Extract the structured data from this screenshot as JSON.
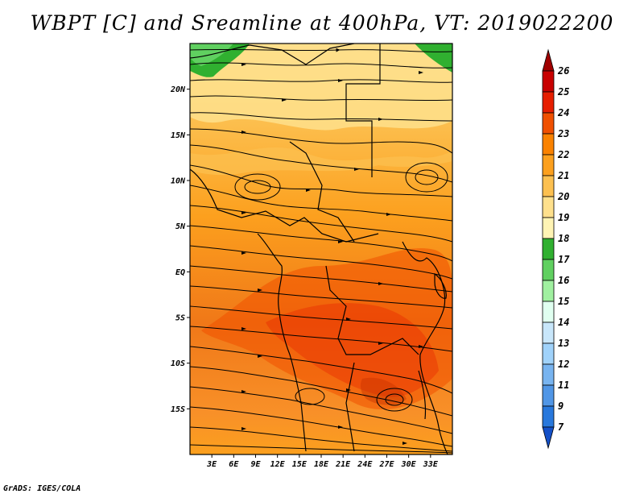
{
  "title": "WBPT [C] and Sreamline at 400hPa, VT: 2019022200",
  "footer": "GrADS: IGES/COLA",
  "map": {
    "lon_range": [
      0,
      36
    ],
    "lat_range": [
      -20,
      25
    ],
    "x_ticks": [
      "3E",
      "6E",
      "9E",
      "12E",
      "15E",
      "18E",
      "21E",
      "24E",
      "27E",
      "30E",
      "33E"
    ],
    "x_tick_values": [
      3,
      6,
      9,
      12,
      15,
      18,
      21,
      24,
      27,
      30,
      33
    ],
    "y_ticks": [
      "20N",
      "15N",
      "10N",
      "5N",
      "EQ",
      "5S",
      "10S",
      "15S"
    ],
    "y_tick_values": [
      20,
      15,
      10,
      5,
      0,
      -5,
      -10,
      -15
    ]
  },
  "colorbar": {
    "labels": [
      "26",
      "25",
      "24",
      "23",
      "22",
      "21",
      "20",
      "19",
      "18",
      "17",
      "16",
      "15",
      "14",
      "13",
      "12",
      "11",
      "9",
      "7"
    ],
    "colors": [
      "#a00000",
      "#c80000",
      "#e61e00",
      "#f05000",
      "#fa8200",
      "#fca01e",
      "#fcc050",
      "#fee08c",
      "#fff4b4",
      "#30b030",
      "#60d060",
      "#a0f0a0",
      "#e0fff0",
      "#c8e6fa",
      "#a0d2fa",
      "#78b4f0",
      "#5096e6",
      "#2878dc",
      "#1450c8"
    ]
  }
}
